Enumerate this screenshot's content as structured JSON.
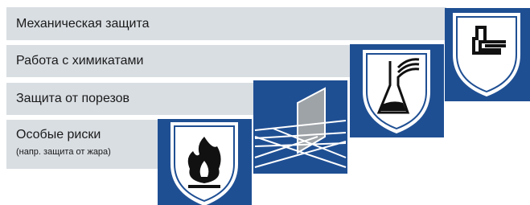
{
  "items": [
    {
      "label": "Механическая защита"
    },
    {
      "label": "Работа с химикатами"
    },
    {
      "label": "Защита от порезов"
    },
    {
      "label": "Особые риски",
      "note": "(напр. защита от жара)"
    }
  ]
}
